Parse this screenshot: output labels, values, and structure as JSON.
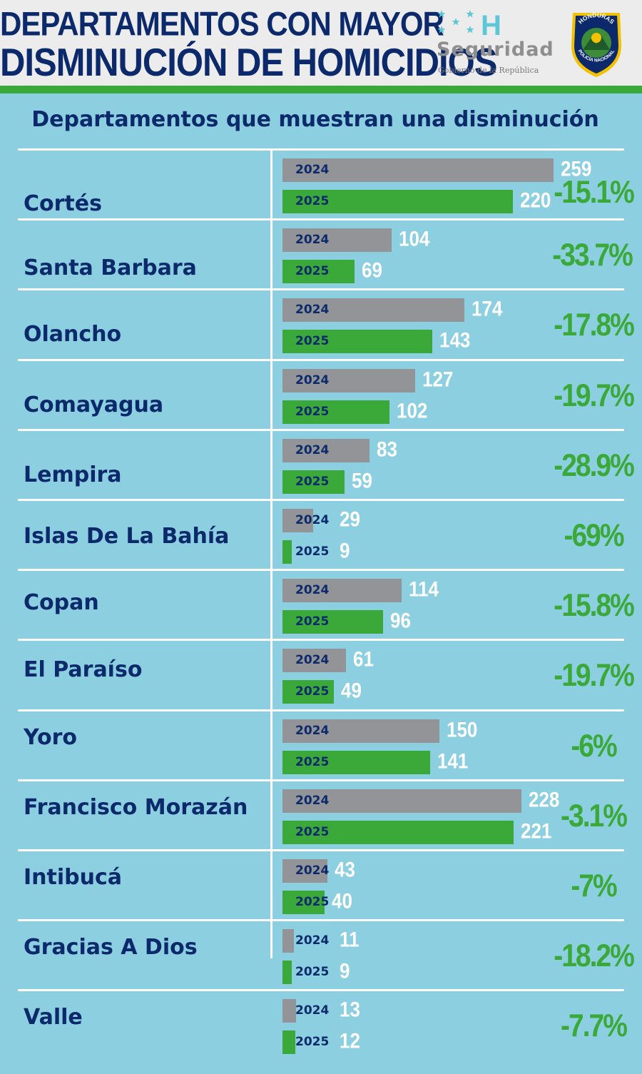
{
  "header": {
    "title_line1": "DEPARTAMENTOS CON MAYOR",
    "title_line2": "DISMINUCIÓN DE HOMICIDIOS",
    "logo_letter": "H",
    "logo_word": "Seguridad",
    "logo_sub": "Gobierno de la República",
    "badge_top": "HONDURAS",
    "badge_bottom": "POLICÍA NACIONAL"
  },
  "subtitle": "Departamentos que muestran una disminución",
  "colors": {
    "bar_2024": "#929497",
    "bar_2025": "#3ba93a",
    "text": "#0c2a6b",
    "background": "#8ccfe0"
  },
  "chart_data": {
    "type": "bar",
    "orientation": "horizontal",
    "title": "Departamentos que muestran una disminución",
    "series_names": [
      "2024",
      "2025"
    ],
    "scale_max": 259,
    "rows": [
      {
        "department": "Cortés",
        "v2024": 259,
        "v2025": 220,
        "change": "-15.1%"
      },
      {
        "department": "Santa Barbara",
        "v2024": 104,
        "v2025": 69,
        "change": "-33.7%"
      },
      {
        "department": "Olancho",
        "v2024": 174,
        "v2025": 143,
        "change": "-17.8%"
      },
      {
        "department": "Comayagua",
        "v2024": 127,
        "v2025": 102,
        "change": "-19.7%"
      },
      {
        "department": "Lempira",
        "v2024": 83,
        "v2025": 59,
        "change": "-28.9%"
      },
      {
        "department": "Islas De La Bahía",
        "v2024": 29,
        "v2025": 9,
        "change": "-69%"
      },
      {
        "department": "Copan",
        "v2024": 114,
        "v2025": 96,
        "change": "-15.8%"
      },
      {
        "department": "El Paraíso",
        "v2024": 61,
        "v2025": 49,
        "change": "-19.7%"
      },
      {
        "department": "Yoro",
        "v2024": 150,
        "v2025": 141,
        "change": "-6%"
      },
      {
        "department": "Francisco Morazán",
        "v2024": 228,
        "v2025": 221,
        "change": "-3.1%"
      },
      {
        "department": "Intibucá",
        "v2024": 43,
        "v2025": 40,
        "change": "-7%"
      },
      {
        "department": "Gracias A Dios",
        "v2024": 11,
        "v2025": 9,
        "change": "-18.2%"
      },
      {
        "department": "Valle",
        "v2024": 13,
        "v2025": 12,
        "change": "-7.7%"
      }
    ]
  }
}
